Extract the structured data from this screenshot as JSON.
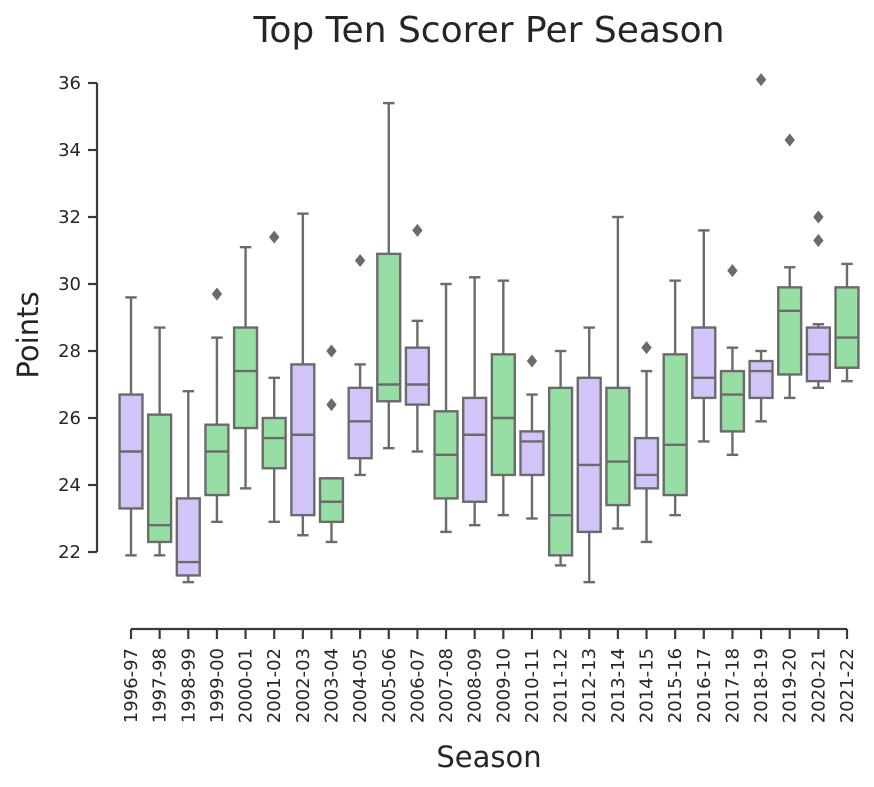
{
  "chart_data": {
    "type": "box",
    "title": "Top Ten Scorer Per Season",
    "xlabel": "Season",
    "ylabel": "Points",
    "ylim": [
      21.0,
      36.0
    ],
    "yticks": [
      22,
      24,
      26,
      28,
      30,
      32,
      34,
      36
    ],
    "grid": false,
    "legend": "none",
    "colors": {
      "a": "#d2c4f8",
      "b": "#96dea4",
      "edge": "#6b6b6b"
    },
    "categories": [
      "1996-97",
      "1997-98",
      "1998-99",
      "1999-00",
      "2000-01",
      "2001-02",
      "2002-03",
      "2003-04",
      "2004-05",
      "2005-06",
      "2006-07",
      "2007-08",
      "2008-09",
      "2009-10",
      "2010-11",
      "2011-12",
      "2012-13",
      "2013-14",
      "2014-15",
      "2015-16",
      "2016-17",
      "2017-18",
      "2018-19",
      "2019-20",
      "2020-21",
      "2021-22"
    ],
    "fill_pattern": [
      "a",
      "b",
      "a",
      "b",
      "b",
      "b",
      "a",
      "b",
      "a",
      "b",
      "a",
      "b",
      "a",
      "b",
      "a",
      "b",
      "a",
      "b",
      "a",
      "b",
      "a",
      "b",
      "a",
      "b",
      "a",
      "b"
    ],
    "boxes": [
      {
        "whisker_low": 21.9,
        "q1": 23.3,
        "median": 25.0,
        "q3": 26.7,
        "whisker_high": 29.6,
        "outliers": []
      },
      {
        "whisker_low": 21.9,
        "q1": 22.3,
        "median": 22.8,
        "q3": 26.1,
        "whisker_high": 28.7,
        "outliers": []
      },
      {
        "whisker_low": 21.1,
        "q1": 21.3,
        "median": 21.7,
        "q3": 23.6,
        "whisker_high": 26.8,
        "outliers": []
      },
      {
        "whisker_low": 22.9,
        "q1": 23.7,
        "median": 25.0,
        "q3": 25.8,
        "whisker_high": 28.4,
        "outliers": [
          29.7
        ]
      },
      {
        "whisker_low": 23.9,
        "q1": 25.7,
        "median": 27.4,
        "q3": 28.7,
        "whisker_high": 31.1,
        "outliers": []
      },
      {
        "whisker_low": 22.9,
        "q1": 24.5,
        "median": 25.4,
        "q3": 26.0,
        "whisker_high": 27.2,
        "outliers": [
          31.4
        ]
      },
      {
        "whisker_low": 22.5,
        "q1": 23.1,
        "median": 25.5,
        "q3": 27.6,
        "whisker_high": 32.1,
        "outliers": []
      },
      {
        "whisker_low": 22.3,
        "q1": 22.9,
        "median": 23.5,
        "q3": 24.2,
        "whisker_high": 24.2,
        "outliers": [
          26.4,
          28.0
        ]
      },
      {
        "whisker_low": 24.3,
        "q1": 24.8,
        "median": 25.9,
        "q3": 26.9,
        "whisker_high": 27.6,
        "outliers": [
          30.7
        ]
      },
      {
        "whisker_low": 25.1,
        "q1": 26.5,
        "median": 27.0,
        "q3": 30.9,
        "whisker_high": 35.4,
        "outliers": []
      },
      {
        "whisker_low": 25.0,
        "q1": 26.4,
        "median": 27.0,
        "q3": 28.1,
        "whisker_high": 28.9,
        "outliers": [
          31.6
        ]
      },
      {
        "whisker_low": 22.6,
        "q1": 23.6,
        "median": 24.9,
        "q3": 26.2,
        "whisker_high": 30.0,
        "outliers": []
      },
      {
        "whisker_low": 22.8,
        "q1": 23.5,
        "median": 25.5,
        "q3": 26.6,
        "whisker_high": 30.2,
        "outliers": []
      },
      {
        "whisker_low": 23.1,
        "q1": 24.3,
        "median": 26.0,
        "q3": 27.9,
        "whisker_high": 30.1,
        "outliers": []
      },
      {
        "whisker_low": 23.0,
        "q1": 24.3,
        "median": 25.3,
        "q3": 25.6,
        "whisker_high": 26.7,
        "outliers": [
          27.7
        ]
      },
      {
        "whisker_low": 21.6,
        "q1": 21.9,
        "median": 23.1,
        "q3": 26.9,
        "whisker_high": 28.0,
        "outliers": []
      },
      {
        "whisker_low": 21.1,
        "q1": 22.6,
        "median": 24.6,
        "q3": 27.2,
        "whisker_high": 28.7,
        "outliers": []
      },
      {
        "whisker_low": 22.7,
        "q1": 23.4,
        "median": 24.7,
        "q3": 26.9,
        "whisker_high": 32.0,
        "outliers": []
      },
      {
        "whisker_low": 22.3,
        "q1": 23.9,
        "median": 24.3,
        "q3": 25.4,
        "whisker_high": 27.4,
        "outliers": [
          28.1
        ]
      },
      {
        "whisker_low": 23.1,
        "q1": 23.7,
        "median": 25.2,
        "q3": 27.9,
        "whisker_high": 30.1,
        "outliers": []
      },
      {
        "whisker_low": 25.3,
        "q1": 26.6,
        "median": 27.2,
        "q3": 28.7,
        "whisker_high": 31.6,
        "outliers": []
      },
      {
        "whisker_low": 24.9,
        "q1": 25.6,
        "median": 26.7,
        "q3": 27.4,
        "whisker_high": 28.1,
        "outliers": [
          30.4
        ]
      },
      {
        "whisker_low": 25.9,
        "q1": 26.6,
        "median": 27.4,
        "q3": 27.7,
        "whisker_high": 28.0,
        "outliers": [
          36.1
        ]
      },
      {
        "whisker_low": 26.6,
        "q1": 27.3,
        "median": 29.2,
        "q3": 29.9,
        "whisker_high": 30.5,
        "outliers": [
          34.3
        ]
      },
      {
        "whisker_low": 26.9,
        "q1": 27.1,
        "median": 27.9,
        "q3": 28.7,
        "whisker_high": 28.8,
        "outliers": [
          31.3,
          32.0
        ]
      },
      {
        "whisker_low": 27.1,
        "q1": 27.5,
        "median": 28.4,
        "q3": 29.9,
        "whisker_high": 30.6,
        "outliers": []
      }
    ]
  }
}
